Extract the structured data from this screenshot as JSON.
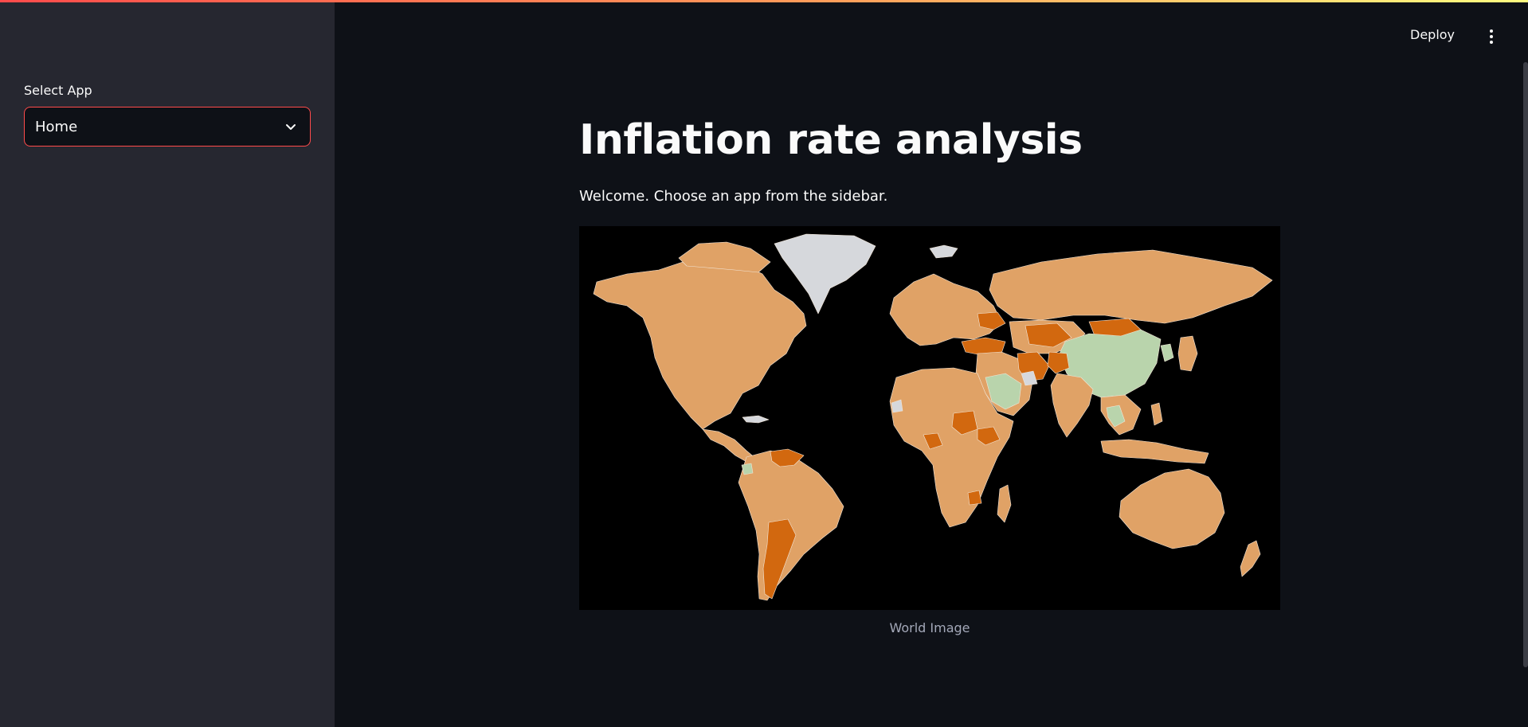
{
  "sidebar": {
    "select_label": "Select App",
    "select_value": "Home"
  },
  "header": {
    "deploy_label": "Deploy",
    "menu_icon": "more-vertical-icon"
  },
  "main": {
    "title": "Inflation rate analysis",
    "welcome_text": "Welcome. Choose an app from the sidebar.",
    "image_caption": "World Image"
  },
  "colors": {
    "background": "#0e1117",
    "sidebar": "#262730",
    "accent": "#ff4b4b",
    "map_low": "#b9d4ac",
    "map_mid": "#e0a266",
    "map_high": "#d2680f",
    "map_nodata": "#d6d8dc"
  }
}
